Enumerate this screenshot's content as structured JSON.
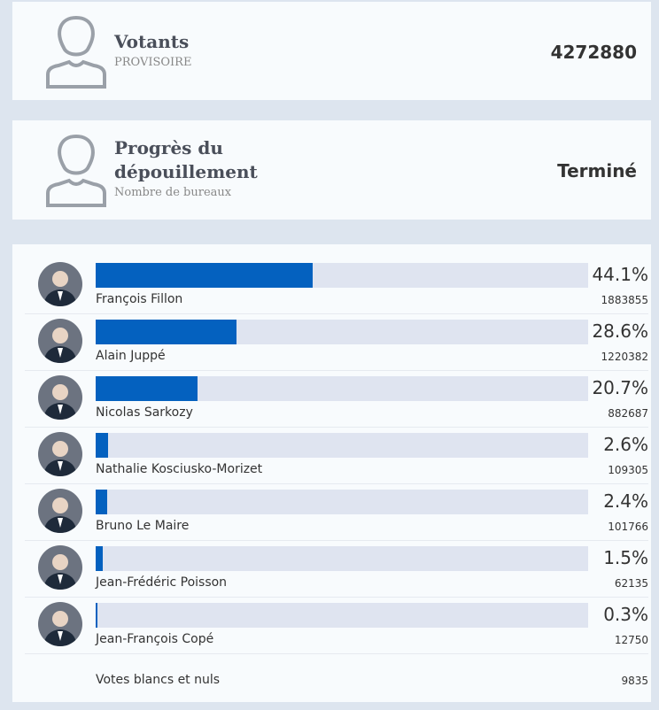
{
  "turnout": {
    "title": "Votants",
    "subtitle": "PROVISOIRE",
    "value": 4272880
  },
  "progress": {
    "title": "Progrès du dépouillement",
    "subtitle": "Nombre de bureaux",
    "value": "Terminé"
  },
  "results": {
    "xlim": [
      0,
      100
    ],
    "color": "#0461bf",
    "track_color": "#dfe4f0",
    "candidates": [
      {
        "name": "François Fillon",
        "percent": 44.1,
        "percent_label": "44.1%",
        "votes": 1883855
      },
      {
        "name": "Alain Juppé",
        "percent": 28.6,
        "percent_label": "28.6%",
        "votes": 1220382
      },
      {
        "name": "Nicolas Sarkozy",
        "percent": 20.7,
        "percent_label": "20.7%",
        "votes": 882687
      },
      {
        "name": "Nathalie Kosciusko-Morizet",
        "percent": 2.6,
        "percent_label": "2.6%",
        "votes": 109305
      },
      {
        "name": "Bruno Le Maire",
        "percent": 2.4,
        "percent_label": "2.4%",
        "votes": 101766
      },
      {
        "name": "Jean-Frédéric Poisson",
        "percent": 1.5,
        "percent_label": "1.5%",
        "votes": 62135
      },
      {
        "name": "Jean-François Copé",
        "percent": 0.3,
        "percent_label": "0.3%",
        "votes": 12750
      }
    ],
    "blank": {
      "label": "Votes blancs et nuls",
      "votes": 9835
    }
  }
}
